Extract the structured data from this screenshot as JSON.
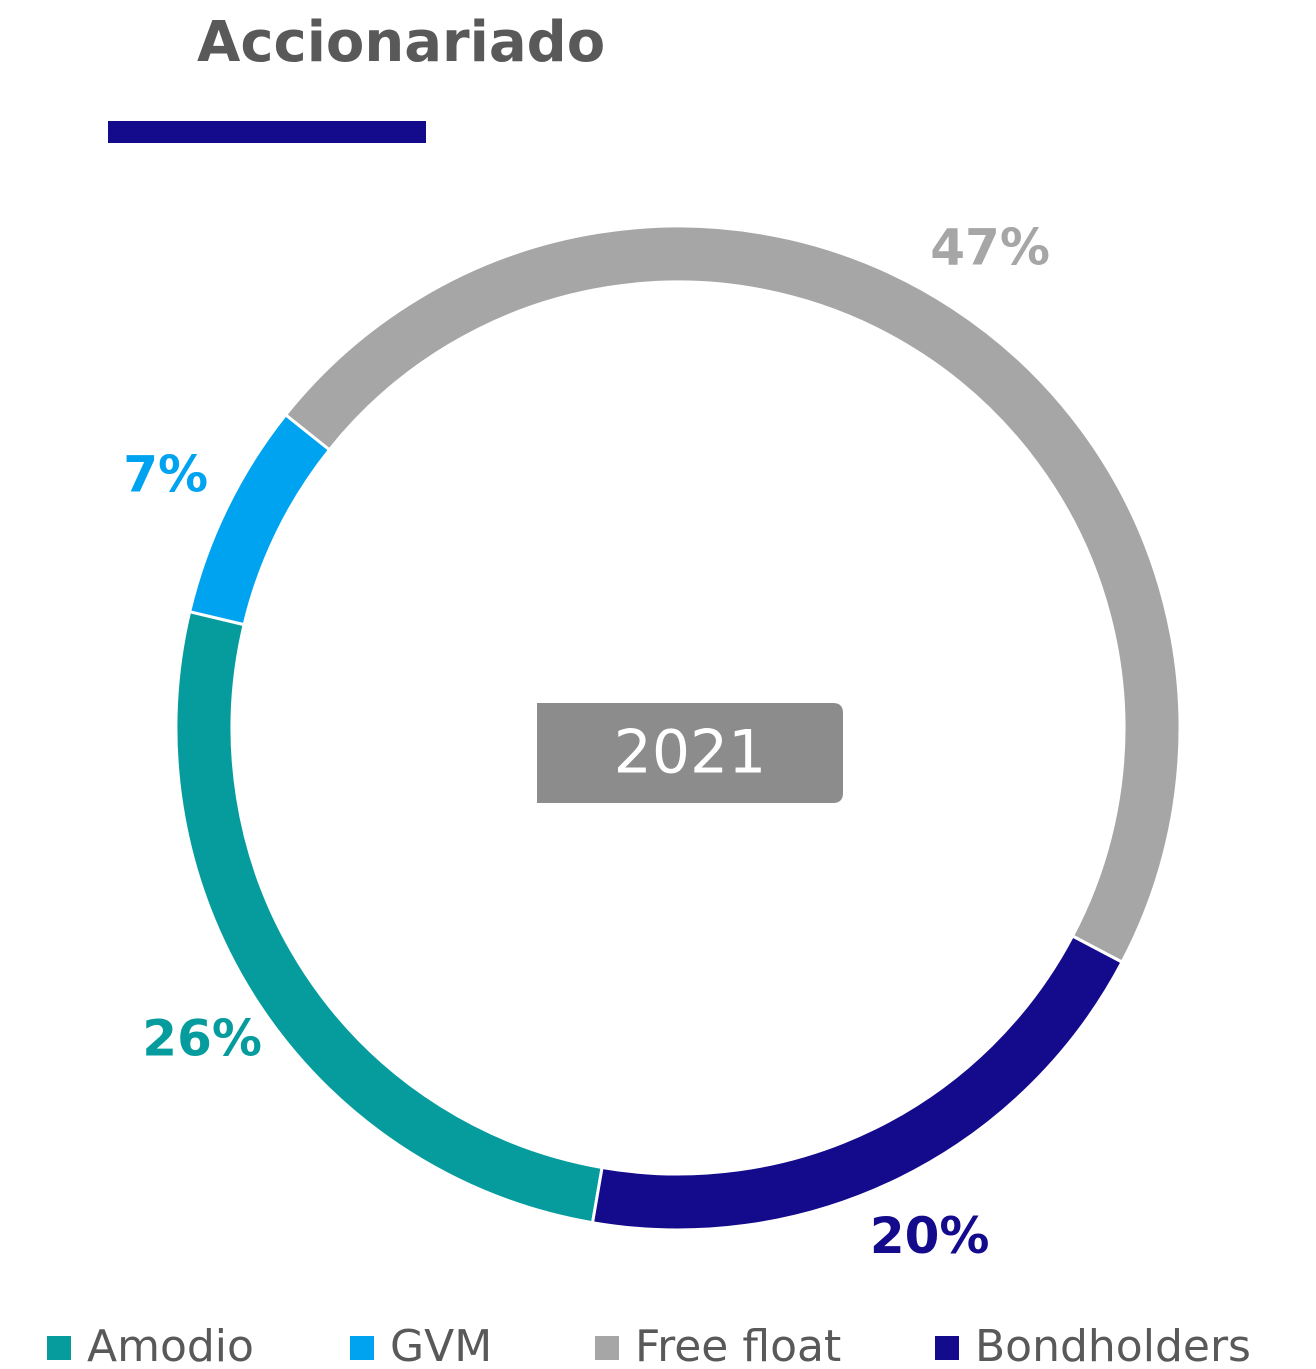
{
  "chart_data": {
    "type": "donut",
    "title": "Accionariado",
    "center_label": "2021",
    "categories": [
      "Amodio",
      "GVM",
      "Free float",
      "Bondholders"
    ],
    "values": [
      26,
      7,
      47,
      20
    ],
    "value_labels": [
      "26%",
      "7%",
      "47%",
      "20%"
    ],
    "colors": [
      "#069c9e",
      "#00a3f0",
      "#a6a6a6",
      "#140a8c"
    ],
    "legend": "bottom"
  }
}
